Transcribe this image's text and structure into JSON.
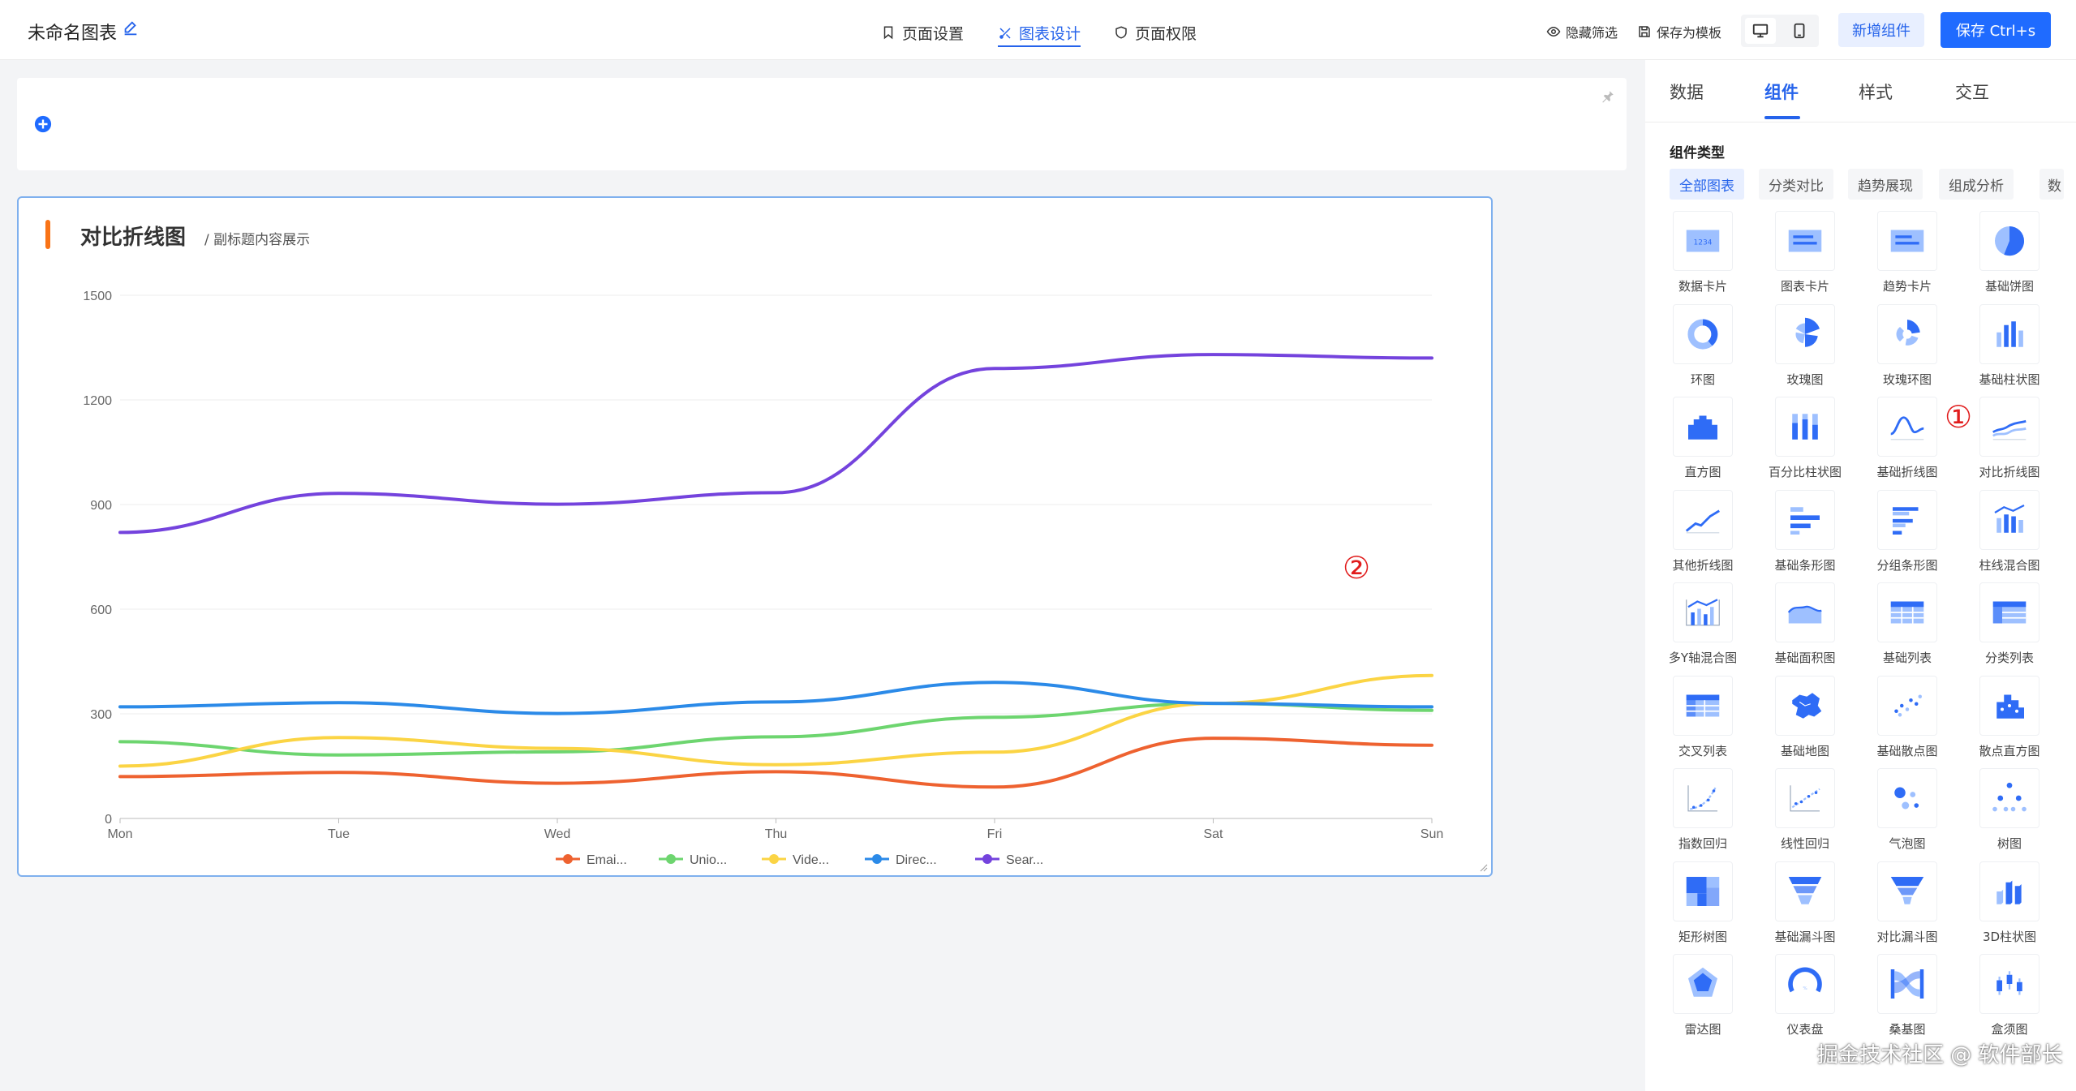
{
  "header": {
    "title": "未命名图表",
    "nav": [
      {
        "label": "页面设置",
        "icon": "bookmark-icon",
        "active": false
      },
      {
        "label": "图表设计",
        "icon": "design-icon",
        "active": true
      },
      {
        "label": "页面权限",
        "icon": "shield-icon",
        "active": false
      }
    ],
    "hide_filter": "隐藏筛选",
    "save_template": "保存为模板",
    "add_component": "新增组件",
    "save": "保存 Ctrl+s"
  },
  "chart": {
    "title": "对比折线图",
    "subtitle": "/ 副标题内容展示"
  },
  "chart_data": {
    "type": "line",
    "smooth": true,
    "categories": [
      "Mon",
      "Tue",
      "Wed",
      "Thu",
      "Fri",
      "Sat",
      "Sun"
    ],
    "ylim": [
      0,
      1500
    ],
    "yticks": [
      "0",
      "300",
      "600",
      "900",
      "1200",
      "1500"
    ],
    "grid": true,
    "legend_position": "bottom",
    "series": [
      {
        "name": "Emai...",
        "color": "#ee6230",
        "values": [
          120,
          132,
          101,
          134,
          90,
          230,
          210
        ]
      },
      {
        "name": "Unio...",
        "color": "#6dd56f",
        "values": [
          220,
          182,
          191,
          234,
          290,
          330,
          310
        ]
      },
      {
        "name": "Vide...",
        "color": "#fbd444",
        "values": [
          150,
          232,
          201,
          154,
          190,
          330,
          410
        ]
      },
      {
        "name": "Direc...",
        "color": "#2b8ae8",
        "values": [
          320,
          332,
          301,
          334,
          390,
          330,
          320
        ]
      },
      {
        "name": "Sear...",
        "color": "#7443dd",
        "values": [
          820,
          932,
          901,
          934,
          1290,
          1330,
          1320
        ]
      }
    ]
  },
  "panel": {
    "tabs": [
      "数据",
      "组件",
      "样式",
      "交互"
    ],
    "active_tab": "组件",
    "section_title": "组件类型",
    "filters": [
      "全部图表",
      "分类对比",
      "趋势展现",
      "组成分析"
    ],
    "filters_more": "数",
    "components": [
      {
        "label": "数据卡片",
        "icon": "data-card-icon"
      },
      {
        "label": "图表卡片",
        "icon": "chart-card-icon"
      },
      {
        "label": "趋势卡片",
        "icon": "trend-card-icon"
      },
      {
        "label": "基础饼图",
        "icon": "pie-chart-icon"
      },
      {
        "label": "环图",
        "icon": "ring-chart-icon"
      },
      {
        "label": "玫瑰图",
        "icon": "rose-chart-icon"
      },
      {
        "label": "玫瑰环图",
        "icon": "rose-ring-chart-icon"
      },
      {
        "label": "基础柱状图",
        "icon": "bar-chart-icon"
      },
      {
        "label": "直方图",
        "icon": "histogram-icon"
      },
      {
        "label": "百分比柱状图",
        "icon": "percent-bar-icon"
      },
      {
        "label": "基础折线图",
        "icon": "line-chart-icon"
      },
      {
        "label": "对比折线图",
        "icon": "compare-line-icon"
      },
      {
        "label": "其他折线图",
        "icon": "other-line-icon"
      },
      {
        "label": "基础条形图",
        "icon": "hbar-chart-icon"
      },
      {
        "label": "分组条形图",
        "icon": "group-hbar-icon"
      },
      {
        "label": "柱线混合图",
        "icon": "bar-line-mix-icon"
      },
      {
        "label": "多Y轴混合图",
        "icon": "multi-y-axis-icon"
      },
      {
        "label": "基础面积图",
        "icon": "area-chart-icon"
      },
      {
        "label": "基础列表",
        "icon": "table-icon"
      },
      {
        "label": "分类列表",
        "icon": "category-table-icon"
      },
      {
        "label": "交叉列表",
        "icon": "cross-table-icon"
      },
      {
        "label": "基础地图",
        "icon": "map-icon"
      },
      {
        "label": "基础散点图",
        "icon": "scatter-icon"
      },
      {
        "label": "散点直方图",
        "icon": "scatter-histogram-icon"
      },
      {
        "label": "指数回归",
        "icon": "exp-regression-icon"
      },
      {
        "label": "线性回归",
        "icon": "linear-regression-icon"
      },
      {
        "label": "气泡图",
        "icon": "bubble-icon"
      },
      {
        "label": "树图",
        "icon": "tree-icon"
      },
      {
        "label": "矩形树图",
        "icon": "treemap-icon"
      },
      {
        "label": "基础漏斗图",
        "icon": "funnel-icon"
      },
      {
        "label": "对比漏斗图",
        "icon": "compare-funnel-icon"
      },
      {
        "label": "3D柱状图",
        "icon": "bar-3d-icon"
      },
      {
        "label": "雷达图",
        "icon": "radar-icon"
      },
      {
        "label": "仪表盘",
        "icon": "gauge-icon"
      },
      {
        "label": "桑基图",
        "icon": "sankey-icon"
      },
      {
        "label": "盒须图",
        "icon": "boxplot-icon"
      }
    ]
  },
  "markers": [
    "①",
    "②"
  ],
  "footer_watermark": "掘金技术社区 @ 软件部长",
  "colors": {
    "accent": "#2563eb",
    "title_bar": "#f97316",
    "marker": "#e11d1d"
  }
}
